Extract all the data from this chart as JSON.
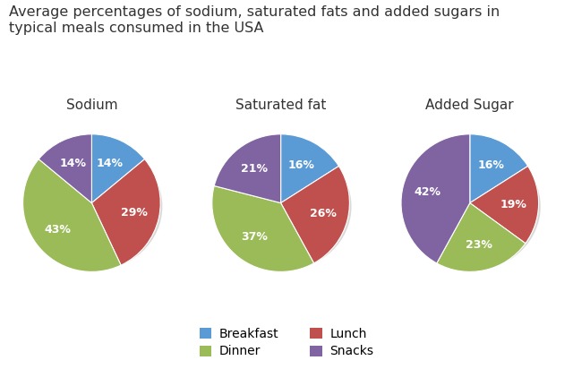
{
  "title": "Average percentages of sodium, saturated fats and added sugars in\ntypical meals consumed in the USA",
  "title_fontsize": 11.5,
  "pie_titles": [
    "Sodium",
    "Saturated fat",
    "Added Sugar"
  ],
  "categories": [
    "Breakfast",
    "Lunch",
    "Dinner",
    "Snacks"
  ],
  "colors": {
    "Breakfast": "#5B9BD5",
    "Lunch": "#C0504D",
    "Dinner": "#9BBB59",
    "Snacks": "#8064A2"
  },
  "sodium": [
    14,
    29,
    43,
    14
  ],
  "saturated_fat": [
    16,
    26,
    37,
    21
  ],
  "added_sugar": [
    16,
    19,
    23,
    42
  ],
  "label_fontsize": 9,
  "legend_fontsize": 10,
  "background_color": "#ffffff",
  "shadow_color": "#d0d0d0"
}
